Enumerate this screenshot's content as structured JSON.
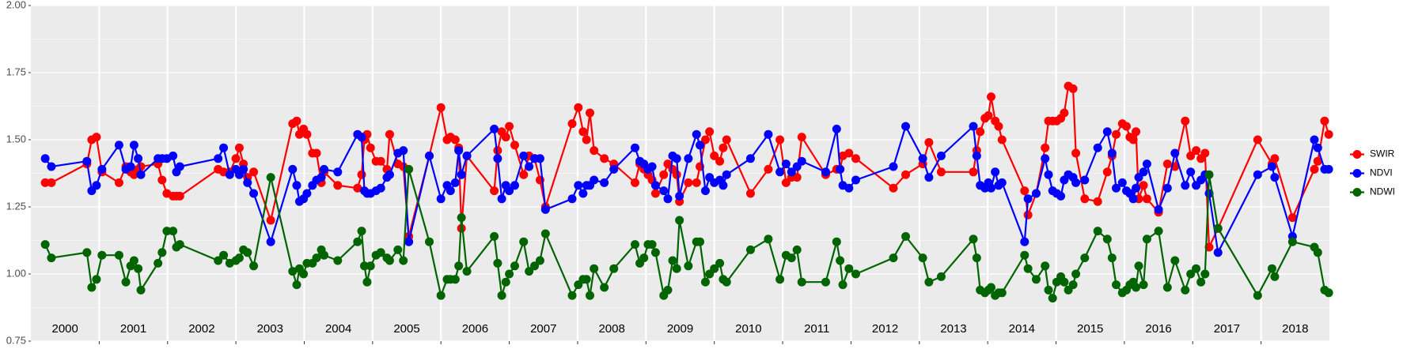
{
  "chart_data": {
    "type": "line",
    "x": [
      2000.21,
      2000.3,
      2000.82,
      2000.89,
      2000.96,
      2001.04,
      2001.29,
      2001.39,
      2001.46,
      2001.51,
      2001.57,
      2001.61,
      2001.86,
      2001.92,
      2001.99,
      2002.08,
      2002.13,
      2002.18,
      2002.74,
      2002.82,
      2002.91,
      2003.0,
      2003.05,
      2003.11,
      2003.17,
      2003.26,
      2003.51,
      2003.83,
      2003.89,
      2003.93,
      2003.99,
      2004.04,
      2004.12,
      2004.18,
      2004.25,
      2004.29,
      2004.49,
      2004.78,
      2004.84,
      2004.88,
      2004.92,
      2004.97,
      2005.05,
      2005.12,
      2005.21,
      2005.25,
      2005.37,
      2005.45,
      2005.53,
      2005.83,
      2006.0,
      2006.09,
      2006.14,
      2006.21,
      2006.26,
      2006.3,
      2006.38,
      2006.78,
      2006.83,
      2006.89,
      2006.95,
      2007.0,
      2007.08,
      2007.21,
      2007.29,
      2007.37,
      2007.45,
      2007.53,
      2007.92,
      2008.01,
      2008.08,
      2008.13,
      2008.18,
      2008.24,
      2008.39,
      2008.53,
      2008.84,
      2008.91,
      2008.97,
      2009.03,
      2009.09,
      2009.14,
      2009.26,
      2009.32,
      2009.39,
      2009.45,
      2009.49,
      2009.62,
      2009.74,
      2009.79,
      2009.87,
      2009.93,
      2010.0,
      2010.08,
      2010.13,
      2010.18,
      2010.53,
      2010.79,
      2010.96,
      2011.05,
      2011.13,
      2011.21,
      2011.28,
      2011.63,
      2011.79,
      2011.84,
      2011.88,
      2011.97,
      2012.07,
      2012.62,
      2012.8,
      2013.05,
      2013.14,
      2013.32,
      2013.79,
      2013.84,
      2013.89,
      2013.96,
      2014.01,
      2014.05,
      2014.11,
      2014.16,
      2014.21,
      2014.54,
      2014.59,
      2014.71,
      2014.84,
      2014.89,
      2014.95,
      2015.01,
      2015.07,
      2015.12,
      2015.18,
      2015.25,
      2015.29,
      2015.42,
      2015.61,
      2015.75,
      2015.82,
      2015.88,
      2015.97,
      2016.03,
      2016.08,
      2016.13,
      2016.17,
      2016.21,
      2016.28,
      2016.33,
      2016.5,
      2016.63,
      2016.74,
      2016.89,
      2016.97,
      2017.05,
      2017.12,
      2017.18,
      2017.24,
      2017.37,
      2017.95,
      2018.16,
      2018.2,
      2018.46,
      2018.78,
      2018.83,
      2018.93,
      2018.99
    ],
    "series": [
      {
        "name": "SWIR",
        "color": "#ff0000",
        "values": [
          1.34,
          1.34,
          1.41,
          1.5,
          1.51,
          1.38,
          1.34,
          1.4,
          1.38,
          1.37,
          1.39,
          1.4,
          1.41,
          1.35,
          1.3,
          1.29,
          1.29,
          1.29,
          1.39,
          1.38,
          1.38,
          1.43,
          1.47,
          1.41,
          1.36,
          1.38,
          1.2,
          1.56,
          1.57,
          1.52,
          1.54,
          1.52,
          1.45,
          1.45,
          1.34,
          1.38,
          1.33,
          1.32,
          1.37,
          1.5,
          1.52,
          1.47,
          1.42,
          1.42,
          1.39,
          1.52,
          1.41,
          1.4,
          1.14,
          1.44,
          1.62,
          1.5,
          1.51,
          1.5,
          1.47,
          1.17,
          1.44,
          1.31,
          1.46,
          1.53,
          1.51,
          1.55,
          1.48,
          1.37,
          1.44,
          1.43,
          1.35,
          1.25,
          1.56,
          1.62,
          1.53,
          1.5,
          1.6,
          1.46,
          1.43,
          1.41,
          1.34,
          1.41,
          1.39,
          1.37,
          1.35,
          1.3,
          1.37,
          1.41,
          1.39,
          1.37,
          1.27,
          1.34,
          1.34,
          1.4,
          1.5,
          1.53,
          1.44,
          1.42,
          1.47,
          1.5,
          1.3,
          1.39,
          1.5,
          1.34,
          1.36,
          1.36,
          1.51,
          1.37,
          1.39,
          1.39,
          1.44,
          1.45,
          1.43,
          1.32,
          1.37,
          1.41,
          1.49,
          1.38,
          1.38,
          1.46,
          1.53,
          1.58,
          1.59,
          1.66,
          1.57,
          1.55,
          1.5,
          1.31,
          1.22,
          1.3,
          1.47,
          1.57,
          1.57,
          1.57,
          1.58,
          1.6,
          1.7,
          1.69,
          1.45,
          1.28,
          1.27,
          1.38,
          1.44,
          1.52,
          1.56,
          1.55,
          1.51,
          1.5,
          1.53,
          1.28,
          1.33,
          1.28,
          1.23,
          1.41,
          1.4,
          1.57,
          1.44,
          1.46,
          1.43,
          1.45,
          1.1,
          1.17,
          1.5,
          1.41,
          1.43,
          1.21,
          1.39,
          1.42,
          1.57,
          1.52
        ]
      },
      {
        "name": "NDVI",
        "color": "#0000ff",
        "values": [
          1.43,
          1.4,
          1.42,
          1.31,
          1.33,
          1.39,
          1.48,
          1.39,
          1.4,
          1.48,
          1.43,
          1.37,
          1.43,
          1.43,
          1.43,
          1.44,
          1.38,
          1.4,
          1.43,
          1.47,
          1.37,
          1.39,
          1.37,
          1.39,
          1.34,
          1.3,
          1.12,
          1.39,
          1.33,
          1.27,
          1.28,
          1.3,
          1.33,
          1.35,
          1.36,
          1.39,
          1.38,
          1.52,
          1.51,
          1.31,
          1.3,
          1.3,
          1.31,
          1.32,
          1.36,
          1.37,
          1.45,
          1.46,
          1.12,
          1.44,
          1.28,
          1.33,
          1.31,
          1.34,
          1.46,
          1.37,
          1.44,
          1.54,
          1.43,
          1.28,
          1.33,
          1.31,
          1.33,
          1.44,
          1.4,
          1.43,
          1.43,
          1.24,
          1.28,
          1.33,
          1.3,
          1.33,
          1.33,
          1.35,
          1.34,
          1.39,
          1.47,
          1.42,
          1.41,
          1.39,
          1.4,
          1.33,
          1.31,
          1.28,
          1.44,
          1.43,
          1.29,
          1.43,
          1.52,
          1.48,
          1.31,
          1.36,
          1.34,
          1.35,
          1.33,
          1.37,
          1.43,
          1.52,
          1.38,
          1.41,
          1.38,
          1.4,
          1.42,
          1.38,
          1.54,
          1.39,
          1.33,
          1.32,
          1.35,
          1.4,
          1.55,
          1.43,
          1.36,
          1.44,
          1.55,
          1.44,
          1.33,
          1.32,
          1.34,
          1.32,
          1.38,
          1.33,
          1.34,
          1.12,
          1.28,
          1.3,
          1.43,
          1.37,
          1.31,
          1.3,
          1.29,
          1.35,
          1.37,
          1.36,
          1.34,
          1.35,
          1.47,
          1.53,
          1.45,
          1.32,
          1.34,
          1.31,
          1.3,
          1.28,
          1.32,
          1.36,
          1.38,
          1.41,
          1.24,
          1.32,
          1.45,
          1.33,
          1.38,
          1.33,
          1.35,
          1.37,
          1.3,
          1.08,
          1.37,
          1.4,
          1.36,
          1.14,
          1.5,
          1.47,
          1.39,
          1.39
        ]
      },
      {
        "name": "NDWI",
        "color": "#006400",
        "values": [
          1.11,
          1.06,
          1.08,
          0.95,
          0.98,
          1.07,
          1.07,
          0.97,
          1.03,
          1.05,
          1.02,
          0.94,
          1.04,
          1.08,
          1.16,
          1.16,
          1.1,
          1.11,
          1.05,
          1.07,
          1.04,
          1.05,
          1.06,
          1.09,
          1.08,
          1.03,
          1.36,
          1.01,
          0.96,
          1.02,
          1.0,
          1.04,
          1.04,
          1.06,
          1.09,
          1.07,
          1.05,
          1.12,
          1.16,
          1.03,
          0.97,
          1.03,
          1.07,
          1.08,
          1.06,
          1.05,
          1.09,
          1.05,
          1.39,
          1.12,
          0.92,
          0.98,
          0.98,
          0.98,
          1.03,
          1.21,
          1.01,
          1.14,
          1.04,
          0.92,
          0.97,
          1.0,
          1.03,
          1.12,
          1.01,
          1.03,
          1.05,
          1.15,
          0.92,
          0.96,
          0.98,
          0.98,
          0.92,
          1.02,
          0.95,
          1.02,
          1.11,
          1.04,
          1.06,
          1.11,
          1.11,
          1.08,
          0.92,
          0.94,
          1.05,
          1.02,
          1.2,
          1.03,
          1.12,
          1.12,
          0.97,
          1.0,
          1.02,
          1.04,
          0.98,
          0.97,
          1.09,
          1.13,
          0.98,
          1.07,
          1.06,
          1.09,
          0.97,
          0.97,
          1.12,
          1.05,
          0.96,
          1.02,
          1.0,
          1.06,
          1.14,
          1.06,
          0.97,
          0.99,
          1.13,
          1.06,
          0.94,
          0.93,
          0.94,
          0.95,
          0.92,
          0.93,
          0.93,
          1.07,
          1.02,
          0.98,
          1.03,
          0.94,
          0.91,
          0.97,
          0.99,
          0.97,
          0.94,
          0.96,
          1.0,
          1.06,
          1.16,
          1.13,
          1.06,
          0.96,
          0.93,
          0.94,
          0.96,
          0.97,
          0.95,
          1.03,
          0.96,
          1.13,
          1.16,
          0.95,
          1.05,
          0.94,
          1.0,
          1.02,
          0.97,
          1.0,
          1.37,
          1.17,
          0.92,
          1.02,
          0.99,
          1.12,
          1.1,
          1.08,
          0.94,
          0.93
        ]
      }
    ],
    "year_labels": [
      2000,
      2001,
      2002,
      2003,
      2004,
      2005,
      2006,
      2007,
      2008,
      2009,
      2010,
      2011,
      2012,
      2013,
      2014,
      2015,
      2016,
      2017,
      2018
    ],
    "xlim": [
      2000,
      2019
    ],
    "xticks": [
      2001,
      2002,
      2003,
      2004,
      2005,
      2006,
      2007,
      2008,
      2009,
      2010,
      2011,
      2012,
      2013,
      2014,
      2015,
      2016,
      2017,
      2018
    ],
    "ylim": [
      0.75,
      2.0
    ],
    "yticks": [
      0.75,
      {
        "value": 1,
        "label": "1.00"
      },
      1.25,
      {
        "value": 1.5,
        "label": "1.50"
      },
      1.75,
      {
        "value": 2,
        "label": "2.00"
      }
    ],
    "grid": true,
    "legend": "right"
  }
}
